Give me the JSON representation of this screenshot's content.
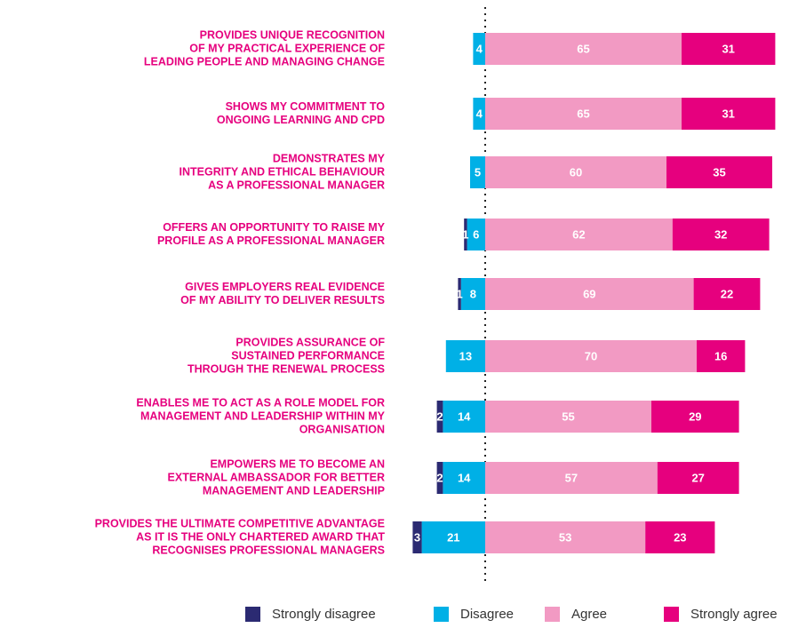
{
  "chart_data": {
    "type": "diverging_bar",
    "categories": [
      "PROVIDES UNIQUE RECOGNITION\nOF MY PRACTICAL EXPERIENCE OF\nLEADING PEOPLE AND MANAGING CHANGE",
      "SHOWS MY COMMITMENT TO\nONGOING LEARNING AND CPD",
      "DEMONSTRATES MY\nINTEGRITY AND ETHICAL BEHAVIOUR\nAS A PROFESSIONAL MANAGER",
      "OFFERS AN OPPORTUNITY TO RAISE MY\nPROFILE AS A PROFESSIONAL MANAGER",
      "GIVES EMPLOYERS REAL EVIDENCE\nOF MY ABILITY TO DELIVER RESULTS",
      "PROVIDES ASSURANCE OF\nSUSTAINED PERFORMANCE\nTHROUGH THE RENEWAL PROCESS",
      "ENABLES ME TO ACT AS A ROLE MODEL FOR\nMANAGEMENT AND LEADERSHIP WITHIN MY\nORGANISATION",
      "EMPOWERS ME TO BECOME AN\nEXTERNAL AMBASSADOR FOR BETTER\nMANAGEMENT AND LEADERSHIP",
      "PROVIDES THE ULTIMATE COMPETITIVE ADVANTAGE\nAS IT IS THE ONLY CHARTERED AWARD THAT\nRECOGNISES PROFESSIONAL MANAGERS"
    ],
    "series": [
      {
        "name": "Strongly disagree",
        "color": "#2b2a72",
        "side": "negative",
        "values": [
          null,
          null,
          null,
          1,
          1,
          null,
          2,
          2,
          3
        ]
      },
      {
        "name": "Disagree",
        "color": "#00b0e6",
        "side": "negative",
        "values": [
          4,
          4,
          5,
          6,
          8,
          13,
          14,
          14,
          21
        ]
      },
      {
        "name": "Agree",
        "color": "#f29ac3",
        "side": "positive",
        "values": [
          65,
          65,
          60,
          62,
          69,
          70,
          55,
          57,
          53
        ]
      },
      {
        "name": "Strongly agree",
        "color": "#e6007e",
        "side": "positive",
        "values": [
          31,
          31,
          35,
          32,
          22,
          16,
          29,
          27,
          23
        ]
      }
    ]
  }
}
